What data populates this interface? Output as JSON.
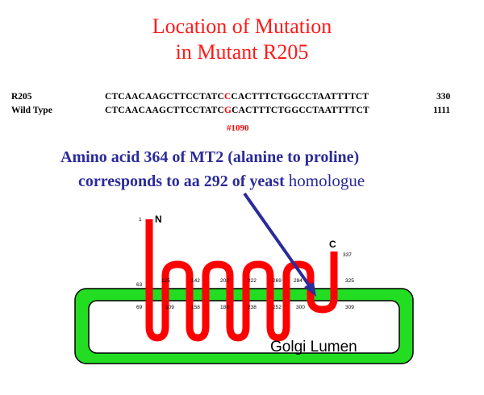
{
  "title": {
    "line1": "Location of Mutation",
    "line2": "in Mutant R205"
  },
  "sequences": [
    {
      "label": "R205",
      "prefix": "CTCAACAAGCTTCCTATC",
      "mutant_base": "C",
      "suffix": "CACTTTCTGGCCTAATTTTCT",
      "number": "330"
    },
    {
      "label": "Wild Type",
      "prefix": "CTCAACAAGCTTCCTATC",
      "mutant_base": "G",
      "suffix": "CACTTTCTGGCCTAATTTTCT",
      "number": "1111"
    }
  ],
  "site_label": "#1090",
  "amino": {
    "line1": "Amino acid 364 of MT2 (alanine to proline)",
    "line2": "corresponds to aa 292 of yeast",
    "line2_tail": "homologue"
  },
  "diagram": {
    "n_terminus": "N",
    "c_terminus": "C",
    "n_start": "1",
    "c_end": "337",
    "lumen_label": "Golgi Lumen",
    "boundary_numbers": {
      "top": [
        "63",
        "125",
        "142",
        "202",
        "222",
        "269",
        "284",
        "325"
      ],
      "bottom": [
        "69",
        "109",
        "158",
        "188",
        "238",
        "252",
        "300",
        "309"
      ]
    },
    "colors": {
      "protein": "#ff0000",
      "membrane": "#22dd22",
      "arrow": "#2b2b9a"
    }
  }
}
